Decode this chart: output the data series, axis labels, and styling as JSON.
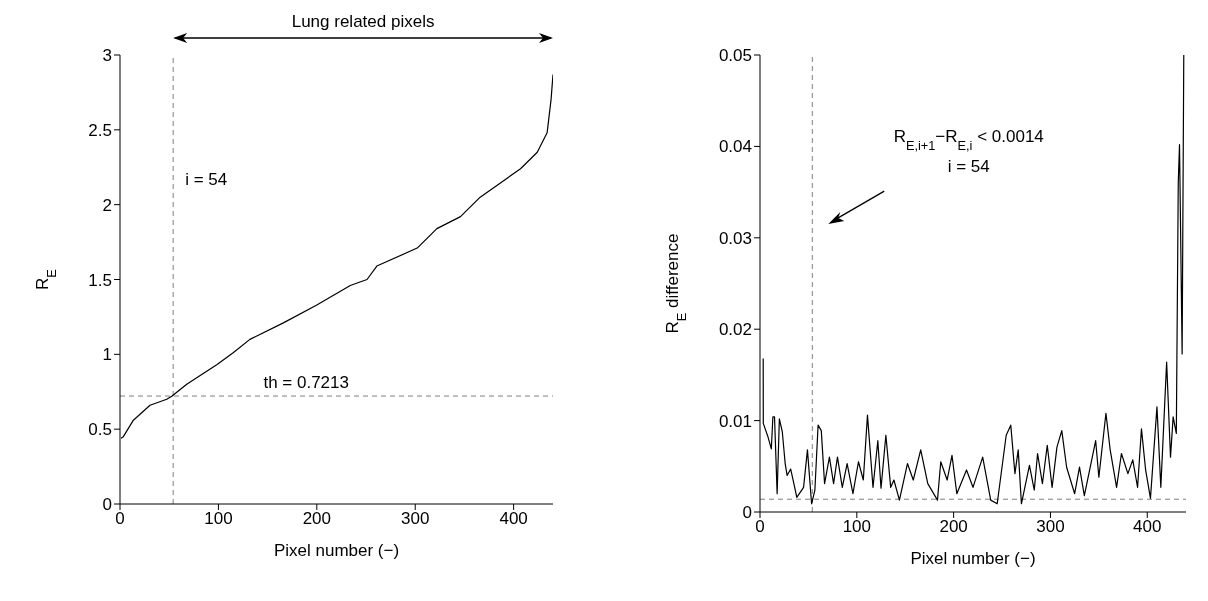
{
  "chart_data": [
    {
      "type": "line",
      "annotations": [
        "Lung related pixels"
      ],
      "xlabel": "Pixel number (−)",
      "ylabel": "R$_{E}$",
      "color": "#000000",
      "marker": "none",
      "line_style": "solid",
      "x": [
        1,
        3.4,
        13.6,
        30.5,
        47.5,
        52.6,
        67.8,
        98.3,
        115,
        132,
        166,
        200,
        234,
        251,
        261,
        302,
        322,
        346,
        366,
        407,
        424,
        434,
        438,
        440
      ],
      "values": [
        0.44,
        0.45,
        0.56,
        0.66,
        0.7,
        0.72,
        0.8,
        0.93,
        1.01,
        1.1,
        1.21,
        1.33,
        1.46,
        1.5,
        1.59,
        1.71,
        1.84,
        1.92,
        2.05,
        2.24,
        2.35,
        2.48,
        2.7,
        2.87
      ],
      "xlim": [
        0,
        440
      ],
      "xticks": [
        0,
        100,
        200,
        300,
        400
      ],
      "ylim": [
        0,
        3
      ],
      "yticks": [
        0,
        0.5,
        1,
        1.5,
        2,
        2.5,
        3
      ],
      "ref_lines": [
        {
          "axis": "x",
          "value": 54,
          "label": "i = 54",
          "color": "#808080",
          "line_style": "dashed"
        },
        {
          "axis": "y",
          "value": 0.7213,
          "label": "th = 0.7213",
          "color": "#808080",
          "line_style": "dashed"
        }
      ]
    },
    {
      "type": "line",
      "annotations": [
        "R$_{E,i+1}$−R$_{E,i}$ < 0.0014",
        "i = 54"
      ],
      "xlabel": "Pixel number (−)",
      "ylabel": "R$_{E}$ difference",
      "color": "#000000",
      "marker": "none",
      "line_style": "solid",
      "x": [
        3.3,
        3.4,
        8.3,
        11.7,
        13.3,
        15,
        17.7,
        20,
        23,
        26,
        28,
        31.7,
        35,
        38,
        45,
        49,
        53.3,
        56.7,
        60,
        63.3,
        66.7,
        71.7,
        76,
        80,
        85,
        90,
        96,
        101.7,
        106.7,
        111,
        116.7,
        121.7,
        125,
        130,
        135,
        138.3,
        144,
        152.3,
        158.3,
        166,
        173.3,
        183.3,
        186.7,
        193.3,
        198.3,
        203.3,
        213.3,
        220,
        230,
        238.3,
        245,
        254.3,
        259,
        263.3,
        266.7,
        270,
        278.3,
        283.3,
        286.7,
        291.7,
        296.7,
        301.7,
        306.7,
        311.7,
        316.7,
        325,
        330,
        335,
        346.7,
        350,
        357.3,
        361.7,
        368.3,
        373.3,
        380,
        385,
        390,
        394,
        398.3,
        403.3,
        410,
        414,
        420,
        424,
        426.7,
        430,
        432,
        433.3,
        436,
        437.7
      ],
      "values": [
        0.0168,
        0.0097,
        0.0082,
        0.0069,
        0.0104,
        0.0104,
        0.002,
        0.0102,
        0.0088,
        0.0053,
        0.004,
        0.0047,
        0.0031,
        0.0016,
        0.0027,
        0.0068,
        0.0009,
        0.0024,
        0.0095,
        0.0089,
        0.0031,
        0.006,
        0.0031,
        0.006,
        0.0027,
        0.0053,
        0.002,
        0.0055,
        0.0035,
        0.0106,
        0.0027,
        0.0078,
        0.0026,
        0.0084,
        0.0027,
        0.0035,
        0.0013,
        0.0053,
        0.0035,
        0.0068,
        0.0031,
        0.0013,
        0.0055,
        0.0035,
        0.0062,
        0.002,
        0.0046,
        0.0027,
        0.006,
        0.0013,
        0.0009,
        0.0084,
        0.0095,
        0.0042,
        0.0068,
        0.0009,
        0.0051,
        0.0024,
        0.0064,
        0.0031,
        0.0073,
        0.0027,
        0.0071,
        0.0089,
        0.0049,
        0.002,
        0.0049,
        0.0018,
        0.0078,
        0.0038,
        0.0108,
        0.0068,
        0.0027,
        0.0064,
        0.0042,
        0.0057,
        0.0027,
        0.0091,
        0.0046,
        0.0015,
        0.0115,
        0.0027,
        0.0164,
        0.006,
        0.0104,
        0.0086,
        0.036,
        0.0402,
        0.0173,
        0.05
      ],
      "xlim": [
        0,
        440
      ],
      "xticks": [
        0,
        100,
        200,
        300,
        400
      ],
      "ylim": [
        0,
        0.05
      ],
      "yticks": [
        0,
        0.01,
        0.02,
        0.03,
        0.04,
        0.05
      ],
      "ref_lines": [
        {
          "axis": "x",
          "value": 54,
          "color": "#808080",
          "line_style": "dashed"
        },
        {
          "axis": "y",
          "value": 0.0014,
          "color": "#808080",
          "line_style": "dashed"
        }
      ]
    }
  ]
}
